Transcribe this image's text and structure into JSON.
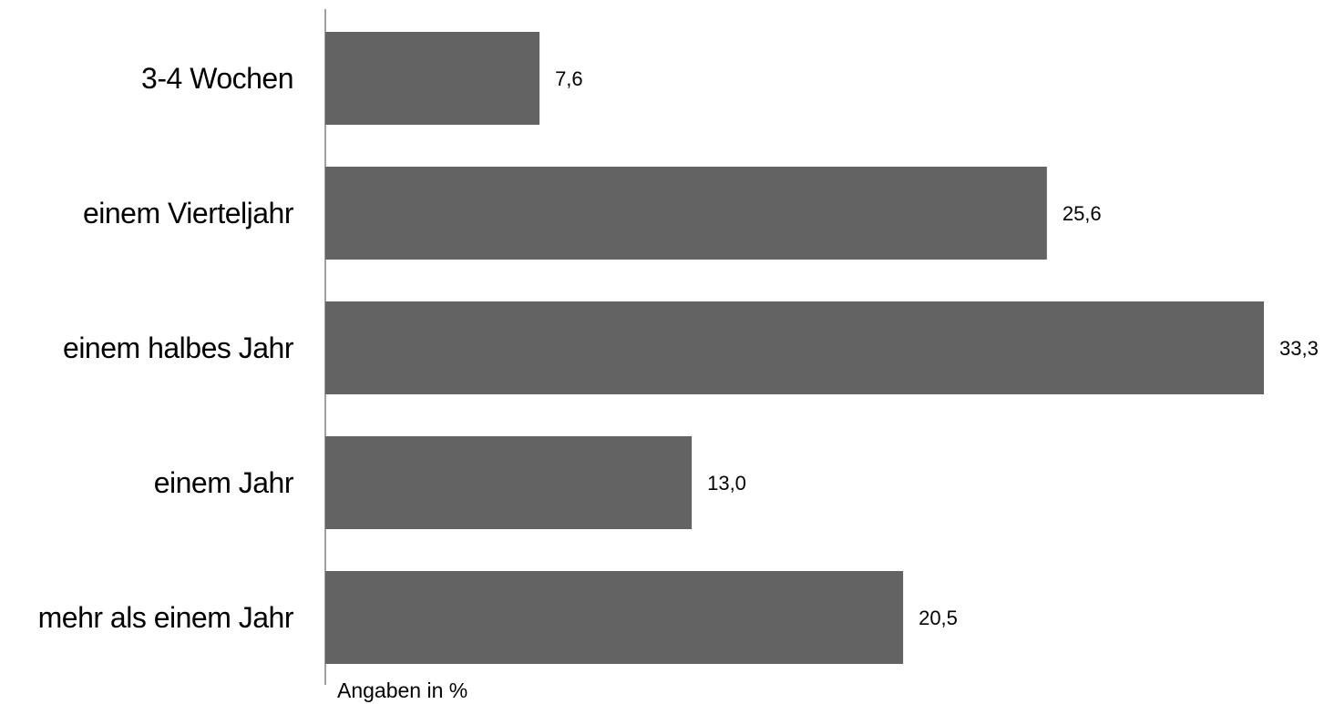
{
  "chart_data": {
    "type": "bar",
    "orientation": "horizontal",
    "categories": [
      "3-4 Wochen",
      "einem Vierteljahr",
      "einem halbes Jahr",
      "einem Jahr",
      "mehr als einem Jahr"
    ],
    "values": [
      7.6,
      25.6,
      33.3,
      13.0,
      20.5
    ],
    "value_labels": [
      "7,6",
      "25,6",
      "33,3",
      "13,0",
      "20,5"
    ],
    "unit_note": "Angaben in %",
    "title": "",
    "xlabel": "",
    "ylabel": "",
    "xlim": [
      0,
      33.3
    ],
    "grid": false,
    "legend": "none",
    "bar_color": "#636363",
    "axis_color": "#808080"
  }
}
